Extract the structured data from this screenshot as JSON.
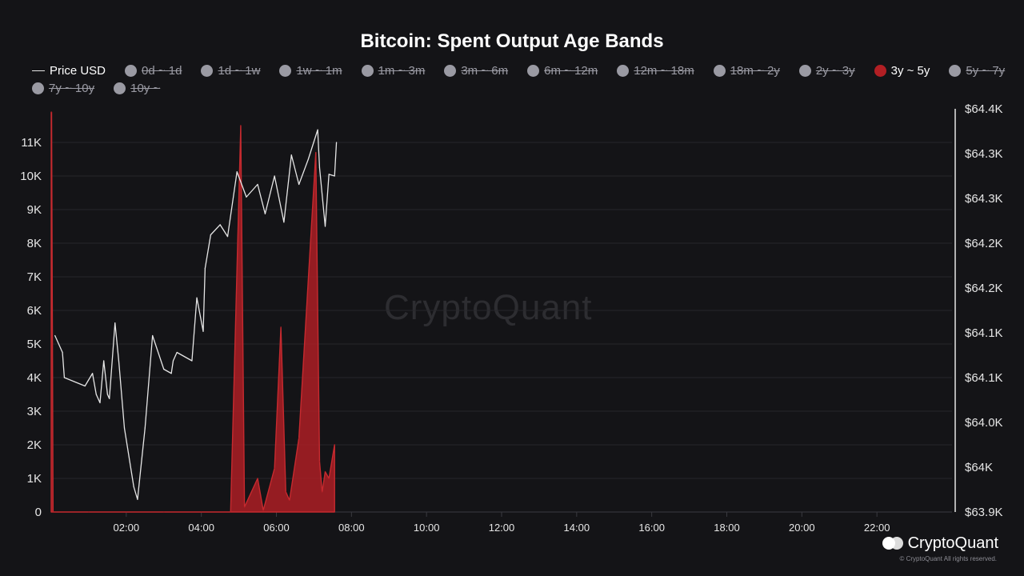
{
  "chart_data": {
    "type": "area",
    "title": "Bitcoin: Spent Output Age Bands",
    "legend": [
      {
        "label": "Price USD",
        "kind": "line",
        "active": true
      },
      {
        "label": "0d ~ 1d",
        "kind": "dot",
        "active": false
      },
      {
        "label": "1d ~ 1w",
        "kind": "dot",
        "active": false
      },
      {
        "label": "1w ~ 1m",
        "kind": "dot",
        "active": false
      },
      {
        "label": "1m ~ 3m",
        "kind": "dot",
        "active": false
      },
      {
        "label": "3m ~ 6m",
        "kind": "dot",
        "active": false
      },
      {
        "label": "6m ~ 12m",
        "kind": "dot",
        "active": false
      },
      {
        "label": "12m ~ 18m",
        "kind": "dot",
        "active": false
      },
      {
        "label": "18m ~ 2y",
        "kind": "dot",
        "active": false
      },
      {
        "label": "2y ~ 3y",
        "kind": "dot",
        "active": false
      },
      {
        "label": "3y ~ 5y",
        "kind": "dot",
        "active": true
      },
      {
        "label": "5y ~ 7y",
        "kind": "dot",
        "active": false
      },
      {
        "label": "7y ~ 10y",
        "kind": "dot",
        "active": false
      },
      {
        "label": "10y ~",
        "kind": "dot",
        "active": false
      }
    ],
    "x_ticks": [
      "02:00",
      "04:00",
      "06:00",
      "08:00",
      "10:00",
      "12:00",
      "14:00",
      "16:00",
      "18:00",
      "20:00",
      "22:00"
    ],
    "x_tick_hours": [
      2,
      4,
      6,
      8,
      10,
      12,
      14,
      16,
      18,
      20,
      22
    ],
    "xlim_hours": [
      0,
      24
    ],
    "y_left_ticks": [
      "0",
      "1K",
      "2K",
      "3K",
      "4K",
      "5K",
      "6K",
      "7K",
      "8K",
      "9K",
      "10K",
      "11K"
    ],
    "y_left_tick_values": [
      0,
      1000,
      2000,
      3000,
      4000,
      5000,
      6000,
      7000,
      8000,
      9000,
      10000,
      11000
    ],
    "ylim_left": [
      0,
      12000
    ],
    "y_right_ticks": [
      "$63.9K",
      "$64K",
      "$64.0K",
      "$64.1K",
      "$64.1K",
      "$64.2K",
      "$64.2K",
      "$64.3K",
      "$64.3K",
      "$64.4K"
    ],
    "ylim_right": [
      63920,
      64400
    ],
    "series": [
      {
        "name": "3y ~ 5y",
        "type": "area",
        "axis": "left",
        "color": "#b21f24",
        "x": [
          0,
          0.01,
          0.05,
          1.0,
          2.0,
          3.0,
          4.0,
          4.78,
          5.05,
          5.15,
          5.5,
          5.65,
          5.95,
          6.12,
          6.25,
          6.35,
          6.6,
          7.05,
          7.15,
          7.22,
          7.3,
          7.4,
          7.55
        ],
        "y": [
          11900,
          11900,
          0,
          0,
          0,
          0,
          0,
          0,
          11500,
          150,
          1000,
          50,
          1300,
          5500,
          600,
          350,
          2200,
          10700,
          1500,
          600,
          1200,
          1000,
          2000
        ]
      },
      {
        "name": "Price USD",
        "type": "line",
        "axis": "right",
        "color": "#e6e6e6",
        "x": [
          0.1,
          0.3,
          0.35,
          0.9,
          1.1,
          1.2,
          1.3,
          1.4,
          1.5,
          1.55,
          1.7,
          1.8,
          1.95,
          2.2,
          2.3,
          2.5,
          2.7,
          3.0,
          3.2,
          3.25,
          3.35,
          3.75,
          3.88,
          4.05,
          4.1,
          4.25,
          4.5,
          4.7,
          4.95,
          5.2,
          5.5,
          5.7,
          5.95,
          6.2,
          6.4,
          6.6,
          6.85,
          7.1,
          7.15,
          7.3,
          7.4,
          7.55,
          7.6
        ],
        "y": [
          64130,
          64110,
          64080,
          64070,
          64085,
          64060,
          64050,
          64100,
          64060,
          64055,
          64145,
          64100,
          64020,
          63950,
          63935,
          64020,
          64130,
          64090,
          64085,
          64100,
          64110,
          64100,
          64175,
          64135,
          64210,
          64250,
          64262,
          64248,
          64325,
          64295,
          64310,
          64275,
          64320,
          64265,
          64345,
          64310,
          64340,
          64375,
          64330,
          64260,
          64322,
          64320,
          64360
        ]
      }
    ]
  },
  "watermark": "CryptoQuant",
  "brand": {
    "name": "CryptoQuant",
    "copyright": "© CryptoQuant All rights reserved."
  }
}
